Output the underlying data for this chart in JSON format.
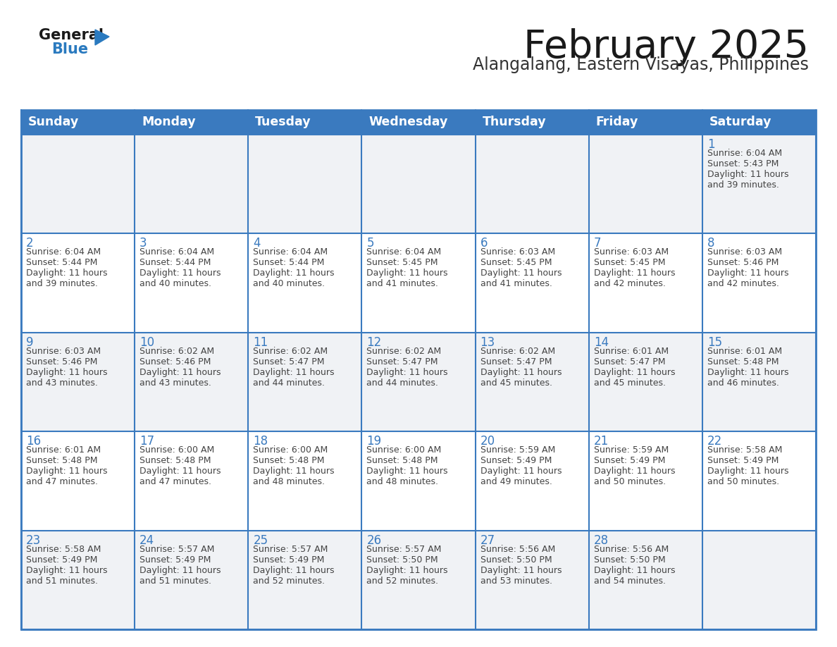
{
  "title": "February 2025",
  "subtitle": "Alangalang, Eastern Visayas, Philippines",
  "days_of_week": [
    "Sunday",
    "Monday",
    "Tuesday",
    "Wednesday",
    "Thursday",
    "Friday",
    "Saturday"
  ],
  "header_bg_color": "#3a7abf",
  "header_text_color": "#ffffff",
  "cell_bg_white": "#ffffff",
  "cell_bg_gray": "#f0f2f5",
  "cell_border_color": "#3a7abf",
  "cell_inner_line_color": "#aec6e0",
  "day_number_color": "#3a7abf",
  "info_text_color": "#444444",
  "logo_general_color": "#1a1a1a",
  "logo_blue_color": "#2a7abf",
  "title_color": "#1a1a1a",
  "subtitle_color": "#333333",
  "calendar_data": [
    [
      {
        "day": null,
        "sunrise": null,
        "sunset": null,
        "daylight_hours": null,
        "daylight_minutes": null
      },
      {
        "day": null,
        "sunrise": null,
        "sunset": null,
        "daylight_hours": null,
        "daylight_minutes": null
      },
      {
        "day": null,
        "sunrise": null,
        "sunset": null,
        "daylight_hours": null,
        "daylight_minutes": null
      },
      {
        "day": null,
        "sunrise": null,
        "sunset": null,
        "daylight_hours": null,
        "daylight_minutes": null
      },
      {
        "day": null,
        "sunrise": null,
        "sunset": null,
        "daylight_hours": null,
        "daylight_minutes": null
      },
      {
        "day": null,
        "sunrise": null,
        "sunset": null,
        "daylight_hours": null,
        "daylight_minutes": null
      },
      {
        "day": 1,
        "sunrise": "6:04 AM",
        "sunset": "5:43 PM",
        "daylight_hours": 11,
        "daylight_minutes": 39
      }
    ],
    [
      {
        "day": 2,
        "sunrise": "6:04 AM",
        "sunset": "5:44 PM",
        "daylight_hours": 11,
        "daylight_minutes": 39
      },
      {
        "day": 3,
        "sunrise": "6:04 AM",
        "sunset": "5:44 PM",
        "daylight_hours": 11,
        "daylight_minutes": 40
      },
      {
        "day": 4,
        "sunrise": "6:04 AM",
        "sunset": "5:44 PM",
        "daylight_hours": 11,
        "daylight_minutes": 40
      },
      {
        "day": 5,
        "sunrise": "6:04 AM",
        "sunset": "5:45 PM",
        "daylight_hours": 11,
        "daylight_minutes": 41
      },
      {
        "day": 6,
        "sunrise": "6:03 AM",
        "sunset": "5:45 PM",
        "daylight_hours": 11,
        "daylight_minutes": 41
      },
      {
        "day": 7,
        "sunrise": "6:03 AM",
        "sunset": "5:45 PM",
        "daylight_hours": 11,
        "daylight_minutes": 42
      },
      {
        "day": 8,
        "sunrise": "6:03 AM",
        "sunset": "5:46 PM",
        "daylight_hours": 11,
        "daylight_minutes": 42
      }
    ],
    [
      {
        "day": 9,
        "sunrise": "6:03 AM",
        "sunset": "5:46 PM",
        "daylight_hours": 11,
        "daylight_minutes": 43
      },
      {
        "day": 10,
        "sunrise": "6:02 AM",
        "sunset": "5:46 PM",
        "daylight_hours": 11,
        "daylight_minutes": 43
      },
      {
        "day": 11,
        "sunrise": "6:02 AM",
        "sunset": "5:47 PM",
        "daylight_hours": 11,
        "daylight_minutes": 44
      },
      {
        "day": 12,
        "sunrise": "6:02 AM",
        "sunset": "5:47 PM",
        "daylight_hours": 11,
        "daylight_minutes": 44
      },
      {
        "day": 13,
        "sunrise": "6:02 AM",
        "sunset": "5:47 PM",
        "daylight_hours": 11,
        "daylight_minutes": 45
      },
      {
        "day": 14,
        "sunrise": "6:01 AM",
        "sunset": "5:47 PM",
        "daylight_hours": 11,
        "daylight_minutes": 45
      },
      {
        "day": 15,
        "sunrise": "6:01 AM",
        "sunset": "5:48 PM",
        "daylight_hours": 11,
        "daylight_minutes": 46
      }
    ],
    [
      {
        "day": 16,
        "sunrise": "6:01 AM",
        "sunset": "5:48 PM",
        "daylight_hours": 11,
        "daylight_minutes": 47
      },
      {
        "day": 17,
        "sunrise": "6:00 AM",
        "sunset": "5:48 PM",
        "daylight_hours": 11,
        "daylight_minutes": 47
      },
      {
        "day": 18,
        "sunrise": "6:00 AM",
        "sunset": "5:48 PM",
        "daylight_hours": 11,
        "daylight_minutes": 48
      },
      {
        "day": 19,
        "sunrise": "6:00 AM",
        "sunset": "5:48 PM",
        "daylight_hours": 11,
        "daylight_minutes": 48
      },
      {
        "day": 20,
        "sunrise": "5:59 AM",
        "sunset": "5:49 PM",
        "daylight_hours": 11,
        "daylight_minutes": 49
      },
      {
        "day": 21,
        "sunrise": "5:59 AM",
        "sunset": "5:49 PM",
        "daylight_hours": 11,
        "daylight_minutes": 50
      },
      {
        "day": 22,
        "sunrise": "5:58 AM",
        "sunset": "5:49 PM",
        "daylight_hours": 11,
        "daylight_minutes": 50
      }
    ],
    [
      {
        "day": 23,
        "sunrise": "5:58 AM",
        "sunset": "5:49 PM",
        "daylight_hours": 11,
        "daylight_minutes": 51
      },
      {
        "day": 24,
        "sunrise": "5:57 AM",
        "sunset": "5:49 PM",
        "daylight_hours": 11,
        "daylight_minutes": 51
      },
      {
        "day": 25,
        "sunrise": "5:57 AM",
        "sunset": "5:49 PM",
        "daylight_hours": 11,
        "daylight_minutes": 52
      },
      {
        "day": 26,
        "sunrise": "5:57 AM",
        "sunset": "5:50 PM",
        "daylight_hours": 11,
        "daylight_minutes": 52
      },
      {
        "day": 27,
        "sunrise": "5:56 AM",
        "sunset": "5:50 PM",
        "daylight_hours": 11,
        "daylight_minutes": 53
      },
      {
        "day": 28,
        "sunrise": "5:56 AM",
        "sunset": "5:50 PM",
        "daylight_hours": 11,
        "daylight_minutes": 54
      },
      {
        "day": null,
        "sunrise": null,
        "sunset": null,
        "daylight_hours": null,
        "daylight_minutes": null
      }
    ]
  ]
}
